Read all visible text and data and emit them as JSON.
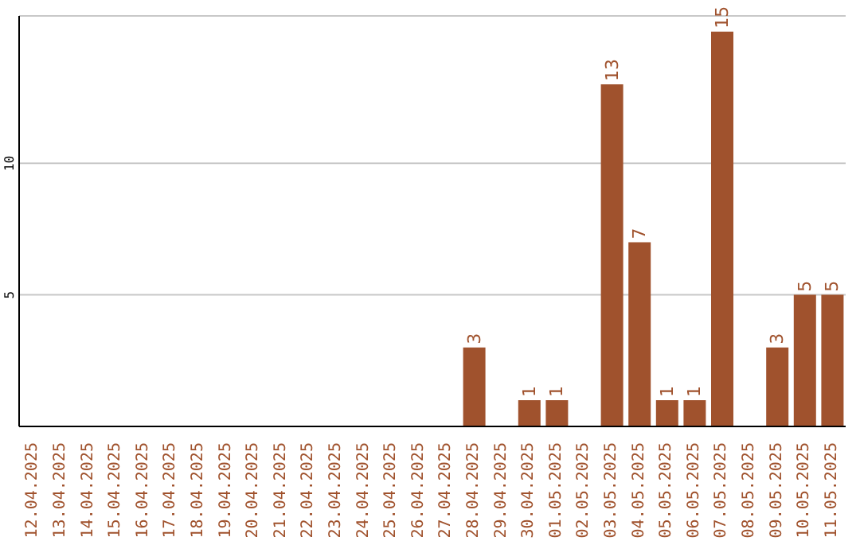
{
  "chart_data": {
    "type": "bar",
    "categories": [
      "12.04.2025",
      "13.04.2025",
      "14.04.2025",
      "15.04.2025",
      "16.04.2025",
      "17.04.2025",
      "18.04.2025",
      "19.04.2025",
      "20.04.2025",
      "21.04.2025",
      "22.04.2025",
      "23.04.2025",
      "24.04.2025",
      "25.04.2025",
      "26.04.2025",
      "27.04.2025",
      "28.04.2025",
      "29.04.2025",
      "30.04.2025",
      "01.05.2025",
      "02.05.2025",
      "03.05.2025",
      "04.05.2025",
      "05.05.2025",
      "06.05.2025",
      "07.05.2025",
      "08.05.2025",
      "09.05.2025",
      "10.05.2025",
      "11.05.2025"
    ],
    "values": [
      0,
      0,
      0,
      0,
      0,
      0,
      0,
      0,
      0,
      0,
      0,
      0,
      0,
      0,
      0,
      0,
      3,
      0,
      1,
      1,
      0,
      13,
      7,
      1,
      1,
      15,
      0,
      3,
      5,
      5
    ],
    "value_labels": [
      null,
      null,
      null,
      null,
      null,
      null,
      null,
      null,
      null,
      null,
      null,
      null,
      null,
      null,
      null,
      null,
      "3",
      null,
      "1",
      "1",
      null,
      "13",
      "7",
      "1",
      "1",
      "15",
      null,
      "3",
      "5",
      "5"
    ],
    "color": "#a0522d",
    "ylim": [
      0,
      15.6
    ],
    "yticks": [
      5,
      10
    ],
    "grid": "y"
  }
}
